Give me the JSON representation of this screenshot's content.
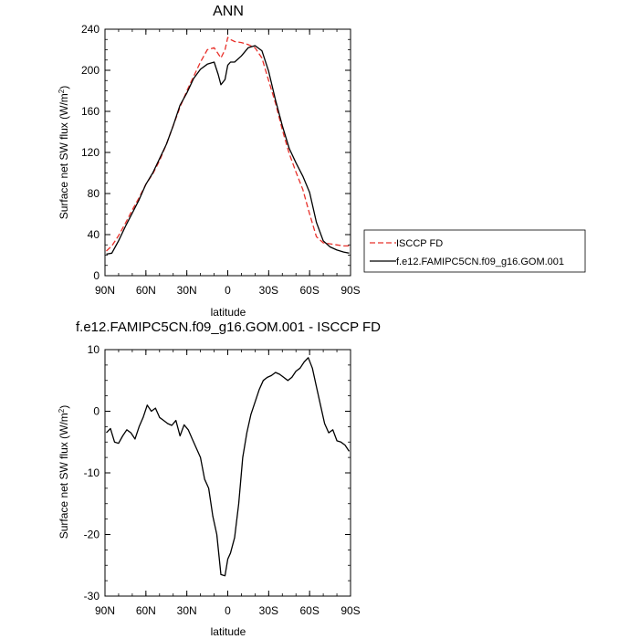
{
  "chart_data": [
    {
      "type": "line",
      "title": "ANN",
      "xlabel": "latitude",
      "ylabel": "Surface net SW flux (W/m",
      "ylabel_sup": "2",
      "ylabel_end": ")",
      "xlim": [
        90,
        -90
      ],
      "ylim": [
        0,
        240
      ],
      "x_ticks": [
        90,
        60,
        30,
        0,
        -30,
        -60,
        -90
      ],
      "x_tick_labels": [
        "90N",
        "60N",
        "30N",
        "0",
        "30S",
        "60S",
        "90S"
      ],
      "y_ticks": [
        0,
        40,
        80,
        120,
        160,
        200,
        240
      ],
      "y_tick_labels": [
        "0",
        "40",
        "80",
        "120",
        "160",
        "200",
        "240"
      ],
      "legend_position": "right-outside",
      "series": [
        {
          "name": "ISCCP FD",
          "color": "#e8302a",
          "style": "dashed",
          "x": [
            89,
            85,
            80,
            75,
            70,
            65,
            60,
            55,
            50,
            45,
            40,
            35,
            30,
            25,
            20,
            15,
            10,
            5,
            2,
            0,
            -2,
            -5,
            -10,
            -15,
            -20,
            -25,
            -30,
            -35,
            -40,
            -45,
            -50,
            -55,
            -60,
            -65,
            -70,
            -75,
            -80,
            -85,
            -89
          ],
          "y": [
            24,
            29,
            39,
            51,
            64,
            76,
            89,
            99,
            112,
            128,
            146,
            164,
            180,
            194,
            208,
            220,
            222,
            212,
            220,
            232,
            230,
            228,
            227,
            225,
            222,
            212,
            190,
            168,
            142,
            119,
            101,
            84,
            60,
            38,
            32,
            31,
            30,
            29,
            29
          ]
        },
        {
          "name": "f.e12.FAMIPC5CN.f09_g16.GOM.001",
          "color": "#000000",
          "style": "solid",
          "x": [
            89,
            85,
            80,
            75,
            70,
            65,
            60,
            55,
            50,
            45,
            40,
            35,
            30,
            25,
            20,
            15,
            10,
            7,
            5,
            2,
            0,
            -2,
            -5,
            -10,
            -15,
            -20,
            -25,
            -30,
            -35,
            -40,
            -45,
            -50,
            -55,
            -60,
            -65,
            -70,
            -75,
            -80,
            -85,
            -89
          ],
          "y": [
            21,
            22,
            34,
            48,
            61,
            74,
            89,
            100,
            114,
            128,
            146,
            166,
            178,
            192,
            201,
            206,
            208,
            196,
            186,
            191,
            205,
            208,
            208,
            214,
            222,
            224,
            219,
            199,
            171,
            146,
            124,
            110,
            97,
            81,
            52,
            34,
            28,
            25,
            23,
            22
          ]
        }
      ]
    },
    {
      "type": "line",
      "title": "f.e12.FAMIPC5CN.f09_g16.GOM.001 - ISCCP FD",
      "xlabel": "latitude",
      "ylabel": "Surface net SW flux (W/m",
      "ylabel_sup": "2",
      "ylabel_end": ")",
      "xlim": [
        90,
        -90
      ],
      "ylim": [
        -30,
        10
      ],
      "x_ticks": [
        90,
        60,
        30,
        0,
        -30,
        -60,
        -90
      ],
      "x_tick_labels": [
        "90N",
        "60N",
        "30N",
        "0",
        "30S",
        "60S",
        "90S"
      ],
      "y_ticks": [
        -30,
        -20,
        -10,
        0,
        10
      ],
      "y_tick_labels": [
        "-30",
        "-20",
        "-10",
        "0",
        "10"
      ],
      "series": [
        {
          "color": "#000000",
          "style": "solid",
          "x": [
            89,
            86,
            83,
            80,
            77,
            74,
            71,
            68,
            65,
            62,
            59,
            56,
            53,
            50,
            47,
            44,
            41,
            38,
            35,
            32,
            29,
            26,
            23,
            20,
            17,
            14,
            11,
            8,
            5,
            2,
            0,
            -2,
            -5,
            -8,
            -11,
            -14,
            -17,
            -20,
            -23,
            -26,
            -29,
            -32,
            -35,
            -38,
            -41,
            -44,
            -47,
            -50,
            -53,
            -56,
            -59,
            -62,
            -65,
            -68,
            -71,
            -74,
            -77,
            -80,
            -83,
            -86,
            -89
          ],
          "y": [
            -3.5,
            -2.8,
            -5.0,
            -5.2,
            -4.0,
            -3.0,
            -3.5,
            -4.5,
            -2.5,
            -1.0,
            1.0,
            0.0,
            0.5,
            -1.0,
            -1.5,
            -2.0,
            -2.3,
            -1.5,
            -4.0,
            -2.2,
            -3.0,
            -4.5,
            -6.0,
            -7.5,
            -11.0,
            -12.5,
            -17.0,
            -20.0,
            -26.5,
            -26.7,
            -24.0,
            -23.0,
            -20.5,
            -15.0,
            -7.5,
            -3.5,
            -0.5,
            1.5,
            3.5,
            5.0,
            5.5,
            5.8,
            6.3,
            6.0,
            5.5,
            5.0,
            5.5,
            6.5,
            7.0,
            8.0,
            8.7,
            7.0,
            4.0,
            1.0,
            -2.0,
            -3.5,
            -3.0,
            -4.8,
            -5.0,
            -5.5,
            -6.5
          ]
        }
      ]
    }
  ]
}
